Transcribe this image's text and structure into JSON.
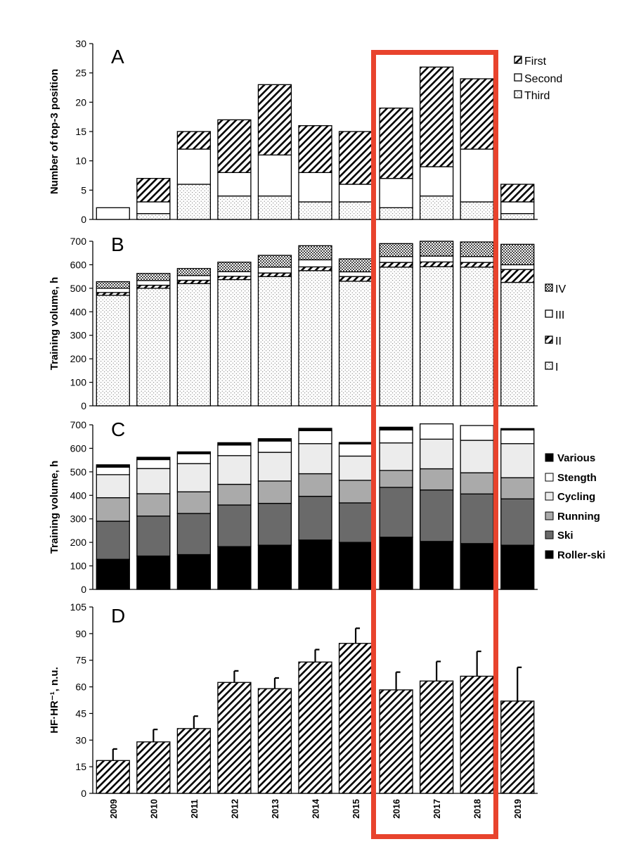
{
  "years": [
    "2009",
    "2010",
    "2011",
    "2012",
    "2013",
    "2014",
    "2015",
    "2016",
    "2017",
    "2018",
    "2019"
  ],
  "highlight": {
    "from": "2016",
    "to": "2018",
    "color": "#e8432d"
  },
  "chart_data": [
    {
      "panel": "A",
      "type": "bar",
      "stacked": true,
      "ylabel": "Number of top-3 position",
      "ylim": [
        0,
        30
      ],
      "yticks": [
        0,
        5,
        10,
        15,
        20,
        25,
        30
      ],
      "categories": [
        "2009",
        "2010",
        "2011",
        "2012",
        "2013",
        "2014",
        "2015",
        "2016",
        "2017",
        "2018",
        "2019"
      ],
      "series": [
        {
          "name": "Third",
          "pattern": "dots",
          "values": [
            0,
            1,
            6,
            4,
            4,
            3,
            3,
            2,
            4,
            3,
            1
          ]
        },
        {
          "name": "Second",
          "pattern": "white",
          "values": [
            2,
            2,
            6,
            4,
            7,
            5,
            3,
            5,
            5,
            9,
            2
          ]
        },
        {
          "name": "First",
          "pattern": "hatch",
          "values": [
            0,
            4,
            3,
            9,
            12,
            8,
            9,
            12,
            17,
            12,
            3
          ]
        }
      ],
      "legend": [
        "First",
        "Second",
        "Third"
      ]
    },
    {
      "panel": "B",
      "type": "bar",
      "stacked": true,
      "ylabel": "Training volume, h",
      "ylim": [
        0,
        700
      ],
      "yticks": [
        0,
        100,
        200,
        300,
        400,
        500,
        600,
        700
      ],
      "categories": [
        "2009",
        "2010",
        "2011",
        "2012",
        "2013",
        "2014",
        "2015",
        "2016",
        "2017",
        "2018",
        "2019"
      ],
      "series": [
        {
          "name": "I",
          "pattern": "dots",
          "values": [
            470,
            500,
            520,
            537,
            550,
            575,
            530,
            590,
            592,
            590,
            525
          ]
        },
        {
          "name": "II",
          "pattern": "hatch",
          "values": [
            12,
            13,
            14,
            14,
            15,
            16,
            20,
            20,
            20,
            20,
            55
          ]
        },
        {
          "name": "III",
          "pattern": "white",
          "values": [
            18,
            20,
            20,
            20,
            25,
            30,
            20,
            25,
            25,
            25,
            20
          ]
        },
        {
          "name": "IV",
          "pattern": "cross",
          "values": [
            28,
            30,
            30,
            40,
            50,
            60,
            55,
            55,
            63,
            62,
            87
          ]
        }
      ],
      "legend": [
        "IV",
        "III",
        "II",
        "I"
      ]
    },
    {
      "panel": "C",
      "type": "bar",
      "stacked": true,
      "ylabel": "Training volume, h",
      "ylim": [
        0,
        700
      ],
      "yticks": [
        0,
        100,
        200,
        300,
        400,
        500,
        600,
        700
      ],
      "categories": [
        "2009",
        "2010",
        "2011",
        "2012",
        "2013",
        "2014",
        "2015",
        "2016",
        "2017",
        "2018",
        "2019"
      ],
      "series": [
        {
          "name": "Roller-ski",
          "color": "#000000",
          "values": [
            128,
            142,
            148,
            182,
            188,
            210,
            200,
            222,
            204,
            195,
            188
          ]
        },
        {
          "name": "Ski",
          "color": "#6a6a6a",
          "values": [
            162,
            170,
            175,
            177,
            178,
            186,
            168,
            212,
            219,
            211,
            197
          ]
        },
        {
          "name": "Running",
          "color": "#aaaaaa",
          "values": [
            100,
            95,
            92,
            88,
            95,
            96,
            96,
            72,
            90,
            90,
            90
          ]
        },
        {
          "name": "Cycling",
          "color": "#ececec",
          "values": [
            98,
            107,
            120,
            122,
            122,
            128,
            103,
            117,
            126,
            138,
            145
          ]
        },
        {
          "name": "Stength",
          "color": "#ffffff",
          "values": [
            32,
            38,
            42,
            45,
            48,
            55,
            52,
            55,
            65,
            63,
            58
          ]
        },
        {
          "name": "Various",
          "color": "#000000",
          "values": [
            10,
            10,
            8,
            10,
            10,
            10,
            6,
            12,
            0,
            0,
            6
          ]
        }
      ],
      "legend": [
        "Various",
        "Stength",
        "Cycling",
        "Running",
        "Ski",
        "Roller-ski"
      ]
    },
    {
      "panel": "D",
      "type": "bar",
      "ylabel": "HF·HR⁻¹, n.u.",
      "ylim": [
        0,
        105
      ],
      "yticks": [
        0,
        15,
        30,
        45,
        60,
        75,
        90,
        105
      ],
      "categories": [
        "2009",
        "2010",
        "2011",
        "2012",
        "2013",
        "2014",
        "2015",
        "2016",
        "2017",
        "2018",
        "2019"
      ],
      "values": [
        18.5,
        29,
        36.5,
        62.5,
        59,
        74,
        84.5,
        58.3,
        63.3,
        66,
        52
      ],
      "errors": [
        6.5,
        7,
        7,
        6.5,
        6,
        7,
        8.5,
        10,
        11,
        14,
        19
      ],
      "pattern": "hatch"
    }
  ]
}
